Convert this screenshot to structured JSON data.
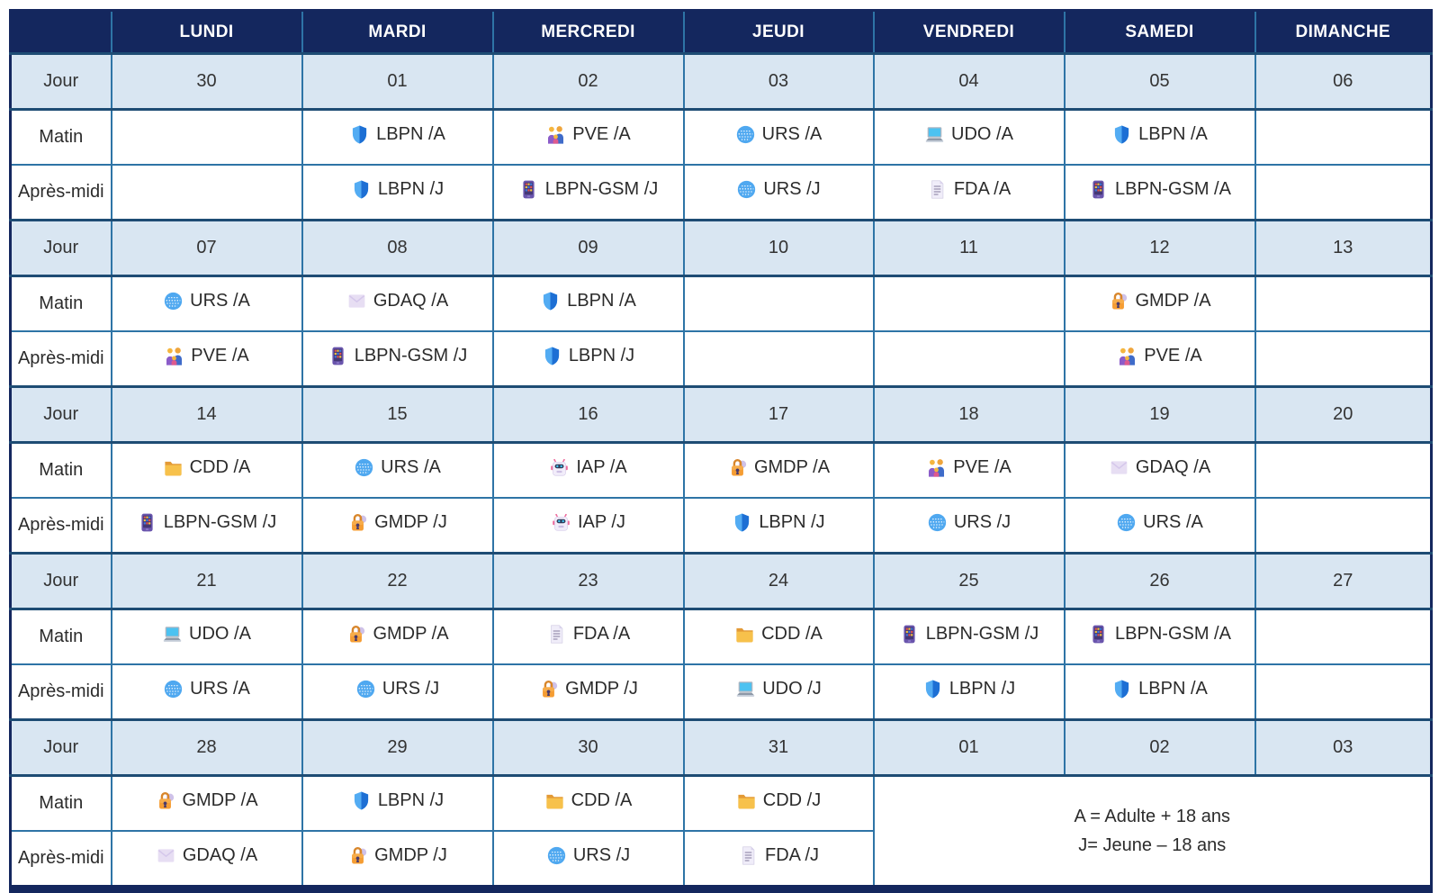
{
  "colors": {
    "header_navy": "#14275E",
    "jour_row_blue": "#D9E6F2",
    "grid_line": "#2E74A6",
    "week_divider": "#1E4C74",
    "text": "#2B2B2B"
  },
  "table": {
    "day_headers": [
      "LUNDI",
      "MARDI",
      "MERCREDI",
      "JEUDI",
      "VENDREDI",
      "SAMEDI",
      "DIMANCHE"
    ],
    "row_labels": {
      "jour": "Jour",
      "matin": "Matin",
      "apres_midi": "Après-midi"
    },
    "weeks": [
      {
        "days": [
          "30",
          "01",
          "02",
          "03",
          "04",
          "05",
          "06"
        ],
        "matin": [
          null,
          {
            "icon": "shield-icon",
            "label": "LBPN /A"
          },
          {
            "icon": "family-icon",
            "label": "PVE /A"
          },
          {
            "icon": "globe-icon",
            "label": "URS /A"
          },
          {
            "icon": "laptop-icon",
            "label": "UDO /A"
          },
          {
            "icon": "shield-icon",
            "label": "LBPN /A"
          },
          null
        ],
        "apres_midi": [
          null,
          {
            "icon": "shield-icon",
            "label": "LBPN /J"
          },
          {
            "icon": "calculator-phone-icon",
            "label": "LBPN-GSM /J"
          },
          {
            "icon": "globe-icon",
            "label": "URS /J"
          },
          {
            "icon": "document-icon",
            "label": "FDA /A"
          },
          {
            "icon": "calculator-phone-icon",
            "label": "LBPN-GSM /A"
          },
          null
        ]
      },
      {
        "days": [
          "07",
          "08",
          "09",
          "10",
          "11",
          "12",
          "13"
        ],
        "matin": [
          {
            "icon": "globe-icon",
            "label": "URS /A"
          },
          {
            "icon": "envelope-icon",
            "label": "GDAQ /A"
          },
          {
            "icon": "shield-icon",
            "label": "LBPN /A"
          },
          null,
          null,
          {
            "icon": "lock-icon",
            "label": "GMDP /A"
          },
          null
        ],
        "apres_midi": [
          {
            "icon": "family-icon",
            "label": "PVE /A"
          },
          {
            "icon": "calculator-phone-icon",
            "label": "LBPN-GSM /J"
          },
          {
            "icon": "shield-icon",
            "label": "LBPN /J"
          },
          null,
          null,
          {
            "icon": "family-icon",
            "label": "PVE /A"
          },
          null
        ]
      },
      {
        "days": [
          "14",
          "15",
          "16",
          "17",
          "18",
          "19",
          "20"
        ],
        "matin": [
          {
            "icon": "folder-icon",
            "label": "CDD /A"
          },
          {
            "icon": "globe-icon",
            "label": "URS /A"
          },
          {
            "icon": "robot-icon",
            "label": "IAP /A"
          },
          {
            "icon": "lock-icon",
            "label": "GMDP /A"
          },
          {
            "icon": "family-icon",
            "label": "PVE /A"
          },
          {
            "icon": "envelope-icon",
            "label": "GDAQ /A"
          },
          null
        ],
        "apres_midi": [
          {
            "icon": "calculator-phone-icon",
            "label": "LBPN-GSM /J"
          },
          {
            "icon": "lock-icon",
            "label": "GMDP /J"
          },
          {
            "icon": "robot-icon",
            "label": "IAP /J"
          },
          {
            "icon": "shield-icon",
            "label": "LBPN /J"
          },
          {
            "icon": "globe-icon",
            "label": "URS /J"
          },
          {
            "icon": "globe-icon",
            "label": "URS /A"
          },
          null
        ]
      },
      {
        "days": [
          "21",
          "22",
          "23",
          "24",
          "25",
          "26",
          "27"
        ],
        "matin": [
          {
            "icon": "laptop-icon",
            "label": "UDO /A"
          },
          {
            "icon": "lock-icon",
            "label": "GMDP /A"
          },
          {
            "icon": "document-icon",
            "label": "FDA /A"
          },
          {
            "icon": "folder-icon",
            "label": "CDD /A"
          },
          {
            "icon": "calculator-phone-icon",
            "label": "LBPN-GSM /J"
          },
          {
            "icon": "calculator-phone-icon",
            "label": "LBPN-GSM /A"
          },
          null
        ],
        "apres_midi": [
          {
            "icon": "globe-icon",
            "label": "URS /A"
          },
          {
            "icon": "globe-icon",
            "label": "URS /J"
          },
          {
            "icon": "lock-icon",
            "label": "GMDP /J"
          },
          {
            "icon": "laptop-icon",
            "label": "UDO /J"
          },
          {
            "icon": "shield-icon",
            "label": "LBPN /J"
          },
          {
            "icon": "shield-icon",
            "label": "LBPN /A"
          },
          null
        ]
      },
      {
        "days": [
          "28",
          "29",
          "30",
          "31",
          "01",
          "02",
          "03"
        ],
        "matin": [
          {
            "icon": "lock-icon",
            "label": "GMDP /A"
          },
          {
            "icon": "shield-icon",
            "label": "LBPN /J"
          },
          {
            "icon": "folder-icon",
            "label": "CDD /A"
          },
          {
            "icon": "folder-icon",
            "label": "CDD /J"
          }
        ],
        "apres_midi": [
          {
            "icon": "envelope-icon",
            "label": "GDAQ /A"
          },
          {
            "icon": "lock-icon",
            "label": "GMDP /J"
          },
          {
            "icon": "globe-icon",
            "label": "URS /J"
          },
          {
            "icon": "document-icon",
            "label": "FDA /J"
          }
        ],
        "legend": [
          "A = Adulte + 18 ans",
          "J= Jeune – 18 ans"
        ]
      }
    ]
  }
}
